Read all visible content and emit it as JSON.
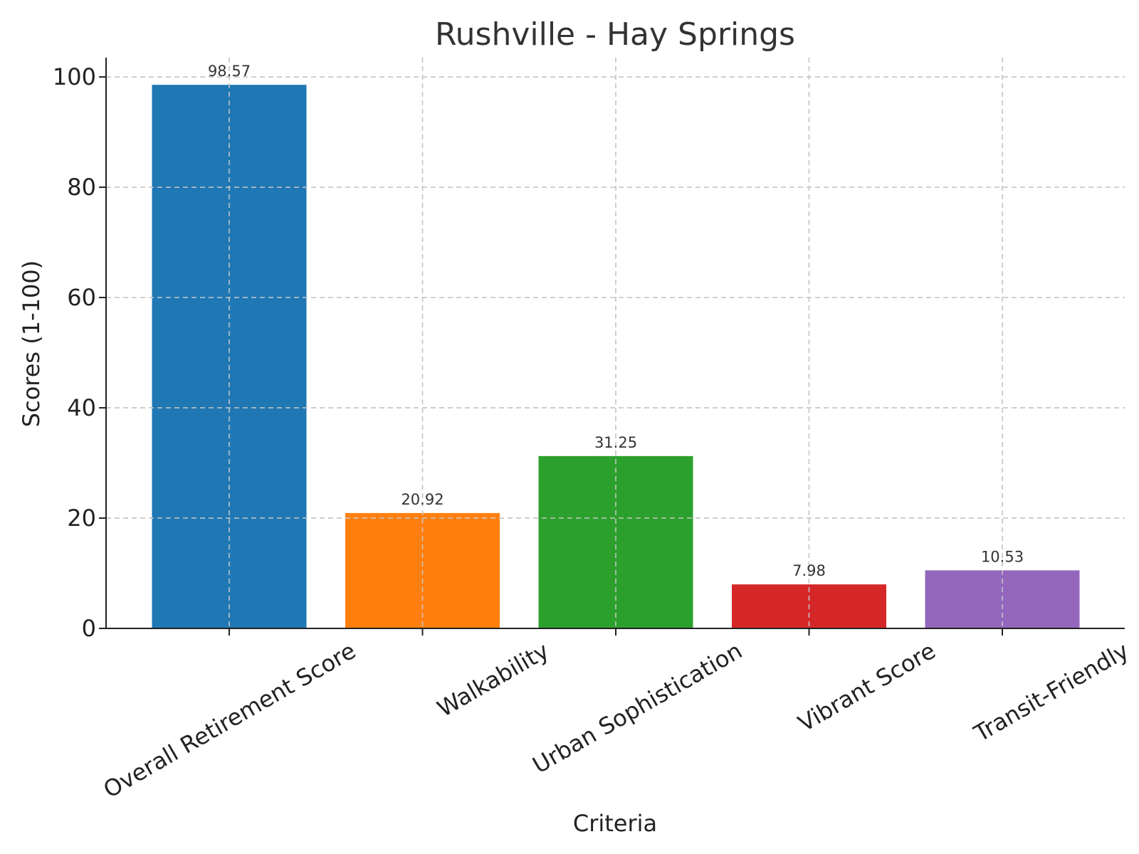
{
  "chart_data": {
    "type": "bar",
    "title": "Rushville - Hay Springs",
    "xlabel": "Criteria",
    "ylabel": "Scores (1-100)",
    "categories": [
      "Overall Retirement Score",
      "Walkability",
      "Urban Sophistication",
      "Vibrant Score",
      "Transit-Friendly"
    ],
    "values": [
      98.57,
      20.92,
      31.25,
      7.98,
      10.53
    ],
    "value_labels": [
      "98.57",
      "20.92",
      "31.25",
      "7.98",
      "10.53"
    ],
    "colors": [
      "#1f77b4",
      "#ff7f0e",
      "#2ca02c",
      "#d62728",
      "#9467bd"
    ],
    "ylim": [
      0,
      103.5
    ],
    "yticks": [
      0,
      20,
      40,
      60,
      80,
      100
    ],
    "grid": true
  }
}
